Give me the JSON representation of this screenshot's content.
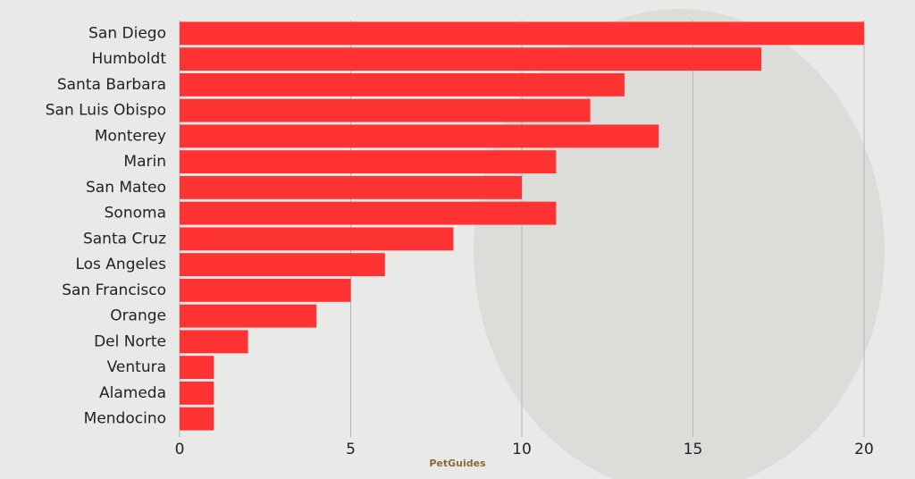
{
  "logo": "PetGuides",
  "chart_data": {
    "type": "bar",
    "orientation": "horizontal",
    "categories": [
      "San Diego",
      "Humboldt",
      "Santa Barbara",
      "San Luis Obispo",
      "Monterey",
      "Marin",
      "San Mateo",
      "Sonoma",
      "Santa Cruz",
      "Los Angeles",
      "San Francisco",
      "Orange",
      "Del Norte",
      "Ventura",
      "Alameda",
      "Mendocino"
    ],
    "values": [
      20,
      17,
      13,
      12,
      14,
      11,
      10,
      11,
      8,
      6,
      5,
      4,
      2,
      1,
      1,
      1
    ],
    "color": "#ff3333",
    "xlim": [
      0,
      20
    ],
    "xticks": [
      0,
      5,
      10,
      15,
      20
    ],
    "grid": true
  }
}
